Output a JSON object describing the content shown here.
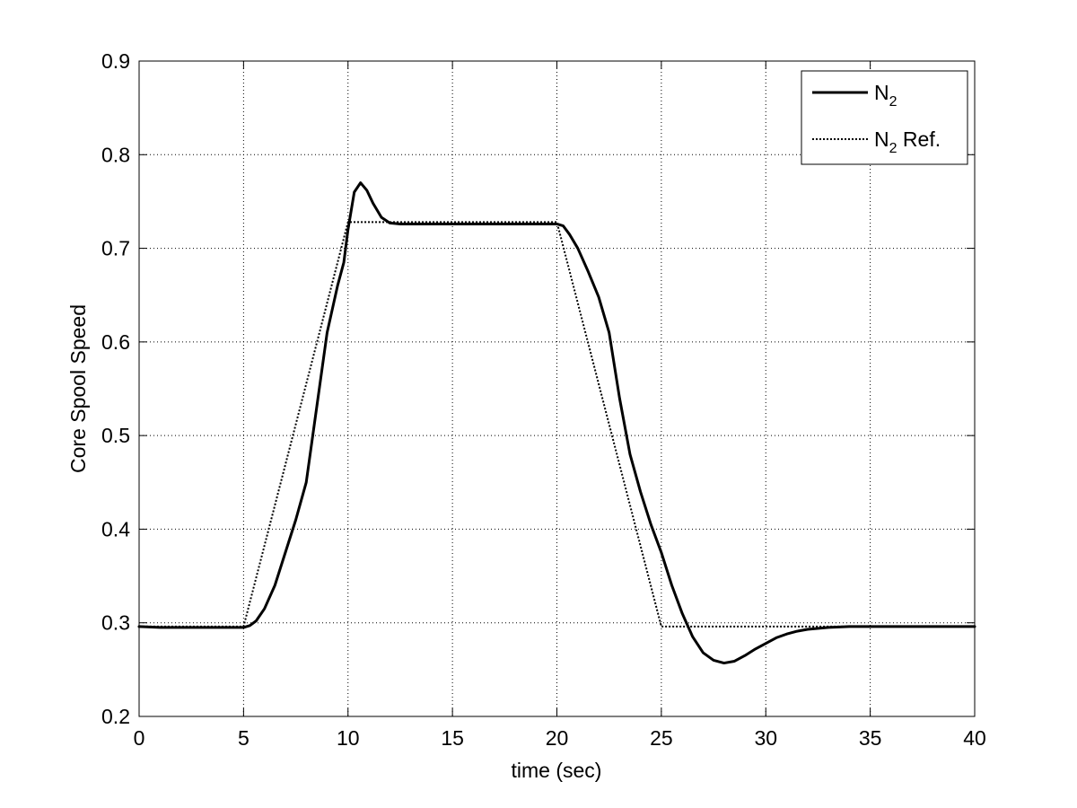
{
  "chart_data": {
    "type": "line",
    "xlabel": "time (sec)",
    "ylabel": "Core Spool Speed",
    "xlim": [
      0,
      40
    ],
    "ylim": [
      0.2,
      0.9
    ],
    "xticks": [
      0,
      5,
      10,
      15,
      20,
      25,
      30,
      35,
      40
    ],
    "yticks": [
      0.2,
      0.3,
      0.4,
      0.5,
      0.6,
      0.7,
      0.8,
      0.9
    ],
    "grid": true,
    "legend_position": "top-right",
    "series": [
      {
        "name": "N2",
        "name_main": "N",
        "name_sub": "2",
        "name_suffix": "",
        "style": "solid",
        "color": "#000000",
        "x": [
          0,
          1,
          2,
          3,
          4,
          5,
          5.3,
          5.6,
          6,
          6.5,
          7,
          7.5,
          8,
          8.5,
          9,
          9.5,
          9.8,
          10,
          10.3,
          10.6,
          10.9,
          11.2,
          11.6,
          12,
          12.5,
          13,
          14,
          15,
          16,
          17,
          18,
          19,
          20,
          20.3,
          20.6,
          21,
          21.5,
          22,
          22.5,
          23,
          23.5,
          24,
          24.5,
          25,
          25.5,
          26,
          26.5,
          27,
          27.5,
          28,
          28.5,
          29,
          29.5,
          30,
          30.5,
          31,
          31.5,
          32,
          33,
          34,
          35,
          36,
          37,
          38,
          39,
          40
        ],
        "y": [
          0.296,
          0.295,
          0.295,
          0.295,
          0.295,
          0.295,
          0.297,
          0.302,
          0.315,
          0.34,
          0.375,
          0.41,
          0.45,
          0.53,
          0.61,
          0.66,
          0.685,
          0.72,
          0.76,
          0.77,
          0.762,
          0.748,
          0.733,
          0.727,
          0.726,
          0.726,
          0.726,
          0.726,
          0.726,
          0.726,
          0.726,
          0.726,
          0.726,
          0.724,
          0.715,
          0.7,
          0.675,
          0.648,
          0.61,
          0.54,
          0.48,
          0.44,
          0.405,
          0.375,
          0.34,
          0.31,
          0.285,
          0.268,
          0.26,
          0.257,
          0.259,
          0.265,
          0.272,
          0.278,
          0.284,
          0.288,
          0.291,
          0.293,
          0.295,
          0.296,
          0.296,
          0.296,
          0.296,
          0.296,
          0.296,
          0.296
        ]
      },
      {
        "name": "N2 Ref.",
        "name_main": "N",
        "name_sub": "2",
        "name_suffix": " Ref.",
        "style": "dotted",
        "color": "#000000",
        "x": [
          0,
          5,
          10,
          20,
          25,
          40
        ],
        "y": [
          0.296,
          0.296,
          0.728,
          0.728,
          0.296,
          0.296
        ]
      }
    ]
  }
}
